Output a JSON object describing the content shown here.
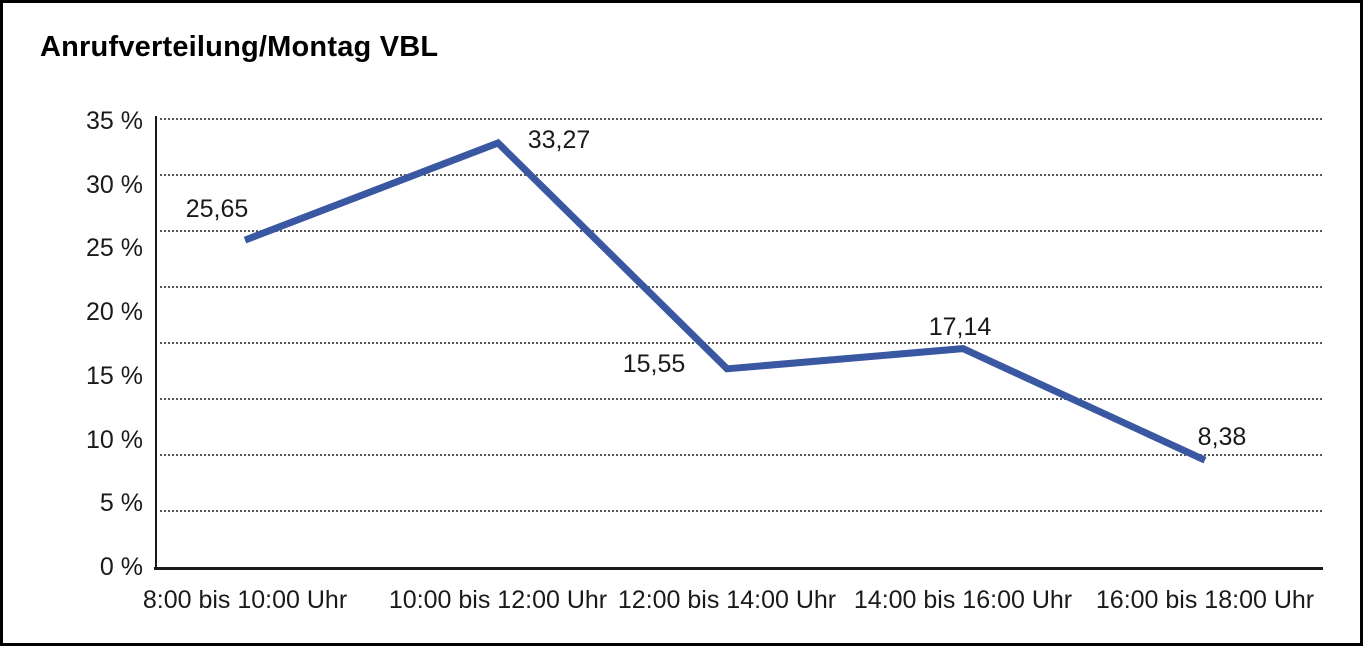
{
  "chart_data": {
    "type": "line",
    "title": "Anrufverteilung/Montag VBL",
    "categories": [
      "8:00 bis 10:00 Uhr",
      "10:00 bis 12:00 Uhr",
      "12:00 bis 14:00 Uhr",
      "14:00 bis 16:00 Uhr",
      "16:00 bis 18:00 Uhr"
    ],
    "values": [
      25.65,
      33.27,
      15.55,
      17.14,
      8.38
    ],
    "value_labels": [
      "25,65",
      "33,27",
      "15,55",
      "17,14",
      "8,38"
    ],
    "yticks": [
      "35 %",
      "30 %",
      "25 %",
      "20 %",
      "15 %",
      "10 %",
      "5 %",
      "0 %"
    ],
    "ylim": [
      0,
      35
    ],
    "ytick_step": 5,
    "xlabel": "",
    "ylabel": "",
    "unit": "%",
    "grid": "horizontal-dotted",
    "legend_position": "none",
    "line_color": "#3A57A2",
    "marker": "none",
    "decimal_separator": ","
  }
}
